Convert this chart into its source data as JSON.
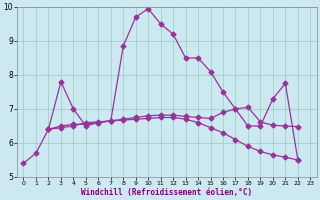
{
  "xlabel": "Windchill (Refroidissement éolien,°C)",
  "background_color": "#cce8f0",
  "line_color": "#993399",
  "grid_color": "#99ccbb",
  "xlim": [
    -0.5,
    23.5
  ],
  "ylim": [
    5,
    10
  ],
  "xticks": [
    0,
    1,
    2,
    3,
    4,
    5,
    6,
    7,
    8,
    9,
    10,
    11,
    12,
    13,
    14,
    15,
    16,
    17,
    18,
    19,
    20,
    21,
    22,
    23
  ],
  "yticks": [
    5,
    6,
    7,
    8,
    9,
    10
  ],
  "line1_x": [
    0,
    1,
    2,
    3,
    4,
    5,
    6,
    7,
    8,
    9,
    10,
    11,
    12,
    13,
    14,
    15,
    16,
    17,
    18,
    19,
    20,
    21,
    22
  ],
  "line1_y": [
    5.4,
    5.7,
    6.4,
    7.8,
    7.0,
    6.5,
    6.6,
    6.65,
    8.85,
    9.7,
    9.95,
    9.5,
    9.2,
    8.5,
    8.5,
    8.1,
    7.5,
    7.0,
    6.5,
    6.5,
    7.3,
    7.75,
    5.5
  ],
  "line2_x": [
    2,
    3,
    4,
    5,
    6,
    7,
    8,
    9,
    10,
    11,
    12,
    13,
    14,
    15,
    16,
    17,
    18,
    19,
    20,
    21,
    22
  ],
  "line2_y": [
    6.4,
    6.5,
    6.55,
    6.55,
    6.6,
    6.65,
    6.7,
    6.75,
    6.8,
    6.82,
    6.82,
    6.78,
    6.75,
    6.72,
    6.9,
    7.0,
    7.05,
    6.62,
    6.52,
    6.5,
    6.48
  ],
  "line3_x": [
    2,
    3,
    4,
    5,
    6,
    7,
    8,
    9,
    10,
    11,
    12,
    13,
    14,
    15,
    16,
    17,
    18,
    19,
    20,
    21,
    22
  ],
  "line3_y": [
    6.4,
    6.45,
    6.5,
    6.6,
    6.62,
    6.65,
    6.67,
    6.7,
    6.72,
    6.75,
    6.75,
    6.7,
    6.6,
    6.45,
    6.3,
    6.1,
    5.9,
    5.75,
    5.65,
    5.58,
    5.5
  ]
}
